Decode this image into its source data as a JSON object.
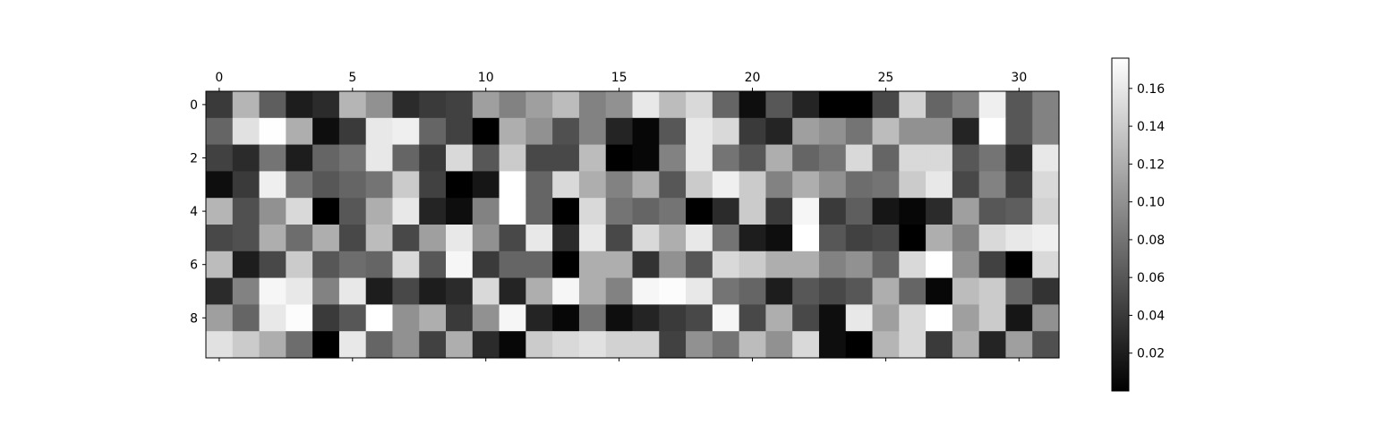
{
  "chart_data": {
    "type": "heatmap",
    "title": "",
    "xlabel": "",
    "ylabel": "",
    "colormap": "gray",
    "rows": 10,
    "cols": 32,
    "x_ticks": [
      0,
      5,
      10,
      15,
      20,
      25,
      30
    ],
    "y_ticks": [
      0,
      2,
      4,
      6,
      8
    ],
    "colorbar": {
      "min": 0.0,
      "max": 0.176,
      "ticks": [
        {
          "value": 0.02,
          "label": "0.02"
        },
        {
          "value": 0.04,
          "label": "0.04"
        },
        {
          "value": 0.06,
          "label": "0.06"
        },
        {
          "value": 0.08,
          "label": "0.08"
        },
        {
          "value": 0.1,
          "label": "0.10"
        },
        {
          "value": 0.12,
          "label": "0.12"
        },
        {
          "value": 0.14,
          "label": "0.14"
        },
        {
          "value": 0.16,
          "label": "0.16"
        }
      ]
    },
    "values": [
      [
        0.04,
        0.125,
        0.065,
        0.02,
        0.03,
        0.125,
        0.1,
        0.03,
        0.04,
        0.045,
        0.11,
        0.09,
        0.11,
        0.13,
        0.09,
        0.1,
        0.16,
        0.13,
        0.15,
        0.07,
        0.01,
        0.06,
        0.025,
        0.0,
        0.0,
        0.05,
        0.145,
        0.07,
        0.09,
        0.165,
        0.06,
        0.09
      ],
      [
        0.07,
        0.155,
        0.175,
        0.12,
        0.01,
        0.04,
        0.16,
        0.165,
        0.07,
        0.045,
        0.0,
        0.12,
        0.1,
        0.055,
        0.09,
        0.025,
        0.005,
        0.06,
        0.16,
        0.15,
        0.04,
        0.025,
        0.11,
        0.1,
        0.08,
        0.13,
        0.1,
        0.1,
        0.025,
        0.176,
        0.06,
        0.09
      ],
      [
        0.045,
        0.03,
        0.08,
        0.02,
        0.07,
        0.08,
        0.16,
        0.07,
        0.04,
        0.15,
        0.06,
        0.14,
        0.05,
        0.05,
        0.13,
        0.0,
        0.005,
        0.09,
        0.16,
        0.08,
        0.06,
        0.12,
        0.07,
        0.08,
        0.15,
        0.07,
        0.15,
        0.15,
        0.06,
        0.08,
        0.03,
        0.16
      ],
      [
        0.01,
        0.04,
        0.165,
        0.08,
        0.06,
        0.07,
        0.08,
        0.14,
        0.045,
        0.0,
        0.015,
        0.176,
        0.07,
        0.15,
        0.12,
        0.09,
        0.12,
        0.06,
        0.14,
        0.165,
        0.14,
        0.09,
        0.12,
        0.1,
        0.075,
        0.08,
        0.14,
        0.16,
        0.05,
        0.09,
        0.045,
        0.15
      ],
      [
        0.125,
        0.055,
        0.1,
        0.15,
        0.0,
        0.06,
        0.12,
        0.16,
        0.025,
        0.01,
        0.09,
        0.176,
        0.07,
        0.0,
        0.15,
        0.08,
        0.07,
        0.08,
        0.0,
        0.03,
        0.14,
        0.04,
        0.17,
        0.04,
        0.065,
        0.015,
        0.005,
        0.03,
        0.11,
        0.06,
        0.065,
        0.145
      ],
      [
        0.05,
        0.055,
        0.12,
        0.075,
        0.12,
        0.05,
        0.13,
        0.05,
        0.11,
        0.16,
        0.1,
        0.05,
        0.16,
        0.03,
        0.16,
        0.05,
        0.15,
        0.12,
        0.16,
        0.08,
        0.02,
        0.01,
        0.176,
        0.06,
        0.045,
        0.05,
        0.0,
        0.12,
        0.09,
        0.15,
        0.16,
        0.165
      ],
      [
        0.13,
        0.02,
        0.05,
        0.14,
        0.06,
        0.075,
        0.07,
        0.15,
        0.06,
        0.17,
        0.04,
        0.07,
        0.07,
        0.0,
        0.12,
        0.12,
        0.035,
        0.1,
        0.06,
        0.15,
        0.14,
        0.12,
        0.12,
        0.09,
        0.1,
        0.07,
        0.15,
        0.176,
        0.1,
        0.045,
        0.0,
        0.15
      ],
      [
        0.03,
        0.09,
        0.17,
        0.16,
        0.09,
        0.16,
        0.02,
        0.05,
        0.02,
        0.03,
        0.15,
        0.025,
        0.12,
        0.17,
        0.12,
        0.09,
        0.17,
        0.174,
        0.16,
        0.08,
        0.07,
        0.02,
        0.06,
        0.05,
        0.06,
        0.12,
        0.07,
        0.005,
        0.13,
        0.14,
        0.07,
        0.035
      ],
      [
        0.11,
        0.07,
        0.16,
        0.174,
        0.04,
        0.06,
        0.176,
        0.1,
        0.12,
        0.04,
        0.1,
        0.17,
        0.025,
        0.005,
        0.08,
        0.01,
        0.025,
        0.04,
        0.05,
        0.17,
        0.05,
        0.12,
        0.05,
        0.01,
        0.16,
        0.11,
        0.15,
        0.176,
        0.11,
        0.14,
        0.015,
        0.1
      ],
      [
        0.155,
        0.14,
        0.12,
        0.075,
        0.0,
        0.16,
        0.07,
        0.1,
        0.045,
        0.12,
        0.03,
        0.005,
        0.14,
        0.15,
        0.155,
        0.145,
        0.145,
        0.045,
        0.1,
        0.08,
        0.13,
        0.1,
        0.15,
        0.01,
        0.0,
        0.125,
        0.15,
        0.04,
        0.12,
        0.025,
        0.11,
        0.055
      ]
    ]
  }
}
